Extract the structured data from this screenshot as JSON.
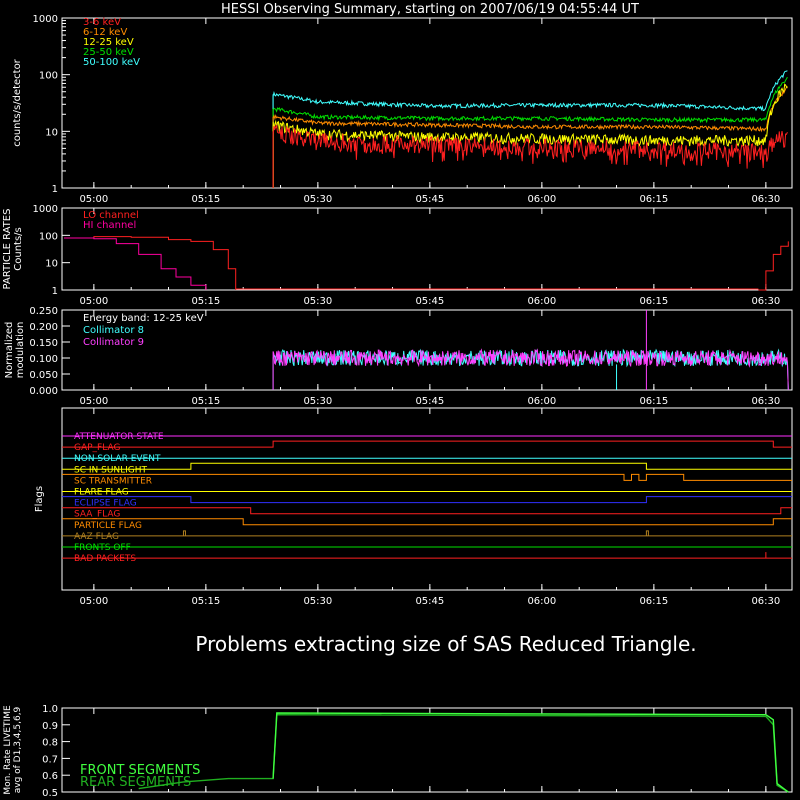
{
  "title": "HESSI Observing Summary, starting on 2007/06/19 04:55:44 UT",
  "message": "Problems extracting size of SAS Reduced Triangle.",
  "time_ticks": [
    "05:00",
    "05:15",
    "05:30",
    "05:45",
    "06:00",
    "06:15",
    "06:30"
  ],
  "colors": {
    "background": "#000000",
    "axis": "#ffffff",
    "e3_6": "#ff2020",
    "e6_12": "#ff8c00",
    "e12_25": "#ffff00",
    "e25_50": "#00e000",
    "e50_100": "#40ffff",
    "lo_channel": "#ff2020",
    "hi_channel": "#ff00a0",
    "collimator8": "#40ffff",
    "collimator9": "#ff40ff",
    "front": "#40ff40",
    "rear": "#20b020"
  },
  "chart_data": [
    {
      "type": "line",
      "name": "count-rates",
      "ylabel": "counts/s/detector",
      "yscale": "log",
      "ylim": [
        1,
        1000
      ],
      "yticks": [
        "1",
        "10",
        "100",
        "1000"
      ],
      "xlim": [
        "04:55:44",
        "06:33:30"
      ],
      "legend_position": "top-left",
      "series": [
        {
          "name": "3-6 keV",
          "color_key": "e3_6",
          "start": "05:24",
          "end": "06:31",
          "levels": [
            [
              "05:24",
              10
            ],
            [
              "05:30",
              7
            ],
            [
              "05:45",
              6
            ],
            [
              "06:00",
              5.5
            ],
            [
              "06:15",
              5
            ],
            [
              "06:30",
              4.5
            ],
            [
              "06:32",
              8
            ]
          ]
        },
        {
          "name": "6-12 keV",
          "color_key": "e6_12",
          "start": "05:24",
          "end": "06:31",
          "levels": [
            [
              "05:24",
              18
            ],
            [
              "05:30",
              14
            ],
            [
              "05:45",
              13
            ],
            [
              "06:00",
              12
            ],
            [
              "06:15",
              12
            ],
            [
              "06:30",
              11
            ],
            [
              "06:33",
              60
            ]
          ]
        },
        {
          "name": "12-25 keV",
          "color_key": "e12_25",
          "start": "05:24",
          "end": "06:31",
          "levels": [
            [
              "05:24",
              13
            ],
            [
              "05:30",
              9
            ],
            [
              "05:45",
              8
            ],
            [
              "06:00",
              7.5
            ],
            [
              "06:15",
              7
            ],
            [
              "06:30",
              7
            ],
            [
              "06:33",
              70
            ]
          ]
        },
        {
          "name": "25-50 keV",
          "color_key": "e25_50",
          "start": "05:24",
          "end": "06:31",
          "levels": [
            [
              "05:24",
              25
            ],
            [
              "05:30",
              18
            ],
            [
              "05:45",
              17
            ],
            [
              "06:00",
              17
            ],
            [
              "06:15",
              16
            ],
            [
              "06:30",
              16
            ],
            [
              "06:33",
              90
            ]
          ]
        },
        {
          "name": "50-100 keV",
          "color_key": "e50_100",
          "start": "05:24",
          "end": "06:31",
          "levels": [
            [
              "05:24",
              45
            ],
            [
              "05:30",
              33
            ],
            [
              "05:45",
              28
            ],
            [
              "06:00",
              29
            ],
            [
              "06:15",
              29
            ],
            [
              "06:30",
              25
            ],
            [
              "06:33",
              120
            ]
          ]
        }
      ]
    },
    {
      "type": "line",
      "name": "particle-rates",
      "ylabel_lines": [
        "PARTICLE RATES",
        "Counts/s"
      ],
      "yscale": "log",
      "ylim": [
        1,
        1000
      ],
      "yticks": [
        "1",
        "10",
        "100",
        "1000"
      ],
      "series": [
        {
          "name": "LO channel",
          "color_key": "lo_channel",
          "points": [
            [
              "04:56",
              80
            ],
            [
              "05:00",
              90
            ],
            [
              "05:05",
              85
            ],
            [
              "05:10",
              70
            ],
            [
              "05:13",
              60
            ],
            [
              "05:16",
              30
            ],
            [
              "05:18",
              6
            ],
            [
              "05:19",
              1
            ]
          ]
        },
        {
          "name": "HI channel",
          "color_key": "hi_channel",
          "points": [
            [
              "04:56",
              80
            ],
            [
              "05:00",
              75
            ],
            [
              "05:03",
              50
            ],
            [
              "05:06",
              20
            ],
            [
              "05:09",
              6
            ],
            [
              "05:11",
              3
            ],
            [
              "05:13",
              1.5
            ],
            [
              "05:15",
              1
            ]
          ]
        },
        {
          "name": "LO channel tail",
          "color_key": "lo_channel",
          "points": [
            [
              "06:29",
              1
            ],
            [
              "06:30",
              5
            ],
            [
              "06:31",
              20
            ],
            [
              "06:32",
              40
            ],
            [
              "06:33",
              60
            ]
          ]
        }
      ]
    },
    {
      "type": "line",
      "name": "modulation",
      "ylabel_lines": [
        "Normalized",
        "modulation"
      ],
      "ylim": [
        0,
        0.25
      ],
      "yticks": [
        "0.000",
        "0.050",
        "0.100",
        "0.150",
        "0.200",
        "0.250"
      ],
      "legend_title": "Energy band: 12-25 keV",
      "series": [
        {
          "name": "Collimator 8",
          "color_key": "collimator8",
          "mean": 0.1,
          "start": "05:24",
          "end": "06:33"
        },
        {
          "name": "Collimator 9",
          "color_key": "collimator9",
          "mean": 0.1,
          "start": "05:24",
          "end": "06:33"
        }
      ]
    },
    {
      "type": "line",
      "name": "flags",
      "ylabel": "Flags",
      "flags": [
        {
          "name": "ATTENUATOR STATE",
          "color": "#ff30ff"
        },
        {
          "name": "GAP_FLAG",
          "color": "#ff2020"
        },
        {
          "name": "NON SOLAR EVENT",
          "color": "#40ffff"
        },
        {
          "name": "SC IN SUNLIGHT",
          "color": "#ffff00"
        },
        {
          "name": "SC TRANSMITTER",
          "color": "#ff8c00"
        },
        {
          "name": "FLARE FLAG",
          "color": "#ffff00"
        },
        {
          "name": "ECLIPSE FLAG",
          "color": "#3030ff"
        },
        {
          "name": "SAA_FLAG",
          "color": "#ff2020"
        },
        {
          "name": "PARTICLE FLAG",
          "color": "#ff8c00"
        },
        {
          "name": "AAZ FLAG",
          "color": "#b08020"
        },
        {
          "name": "FRONTS OFF",
          "color": "#00e000"
        },
        {
          "name": "BAD PACKETS",
          "color": "#ff2020"
        }
      ]
    },
    {
      "type": "line",
      "name": "livetime",
      "ylabel_lines": [
        "Mon. Rate LIVETIME",
        "avg of D1,3,4,5,6,9"
      ],
      "ylim": [
        0.5,
        1.0
      ],
      "yticks": [
        "0.5",
        "0.6",
        "0.7",
        "0.8",
        "0.9",
        "1.0"
      ],
      "series": [
        {
          "name": "FRONT SEGMENTS",
          "color_key": "front",
          "points": [
            [
              "05:24",
              0.58
            ],
            [
              "05:24.5",
              0.97
            ],
            [
              "06:30",
              0.96
            ],
            [
              "06:31",
              0.93
            ],
            [
              "06:31.5",
              0.55
            ],
            [
              "06:33",
              0.5
            ]
          ]
        },
        {
          "name": "REAR SEGMENTS",
          "color_key": "rear",
          "points": [
            [
              "05:06",
              0.52
            ],
            [
              "05:12",
              0.56
            ],
            [
              "05:18",
              0.58
            ],
            [
              "05:24",
              0.58
            ],
            [
              "05:24.5",
              0.96
            ],
            [
              "06:30",
              0.95
            ],
            [
              "06:31",
              0.9
            ],
            [
              "06:31.5",
              0.54
            ],
            [
              "06:33",
              0.5
            ]
          ]
        }
      ]
    }
  ]
}
